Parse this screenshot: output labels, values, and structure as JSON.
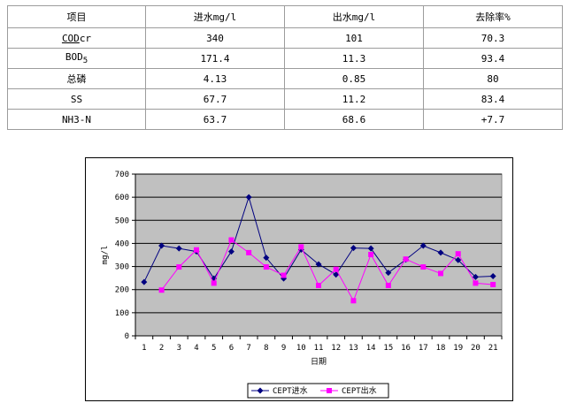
{
  "table": {
    "headers": [
      "项目",
      "进水mg/l",
      "出水mg/l",
      "去除率%"
    ],
    "rows": [
      {
        "item": "CODcr",
        "item_base": "COD",
        "item_sub": "cr",
        "influent": "340",
        "effluent": "101",
        "removal": "70.3"
      },
      {
        "item": "BOD5",
        "item_base": "BOD",
        "item_sub": "5",
        "influent": "171.4",
        "effluent": "11.3",
        "removal": "93.4"
      },
      {
        "item": "总磷",
        "item_base": "总磷",
        "item_sub": "",
        "influent": "4.13",
        "effluent": "0.85",
        "removal": "80"
      },
      {
        "item": "SS",
        "item_base": "SS",
        "item_sub": "",
        "influent": "67.7",
        "effluent": "11.2",
        "removal": "83.4"
      },
      {
        "item": "NH3-N",
        "item_base": "NH3-N",
        "item_sub": "",
        "influent": "63.7",
        "effluent": "68.6",
        "removal": "+7.7"
      }
    ]
  },
  "chart_data": {
    "type": "line",
    "title": "",
    "xlabel": "日期",
    "ylabel": "mg/l",
    "x": [
      1,
      2,
      3,
      4,
      5,
      6,
      7,
      8,
      9,
      10,
      11,
      12,
      13,
      14,
      15,
      16,
      17,
      18,
      19,
      20,
      21
    ],
    "ylim": [
      0,
      700
    ],
    "yticks": [
      0,
      100,
      200,
      300,
      400,
      500,
      600,
      700
    ],
    "grid": true,
    "plot_background": "#c0c0c0",
    "legend_position": "bottom-center",
    "series": [
      {
        "name": "CEPT进水",
        "color": "#000080",
        "marker": "diamond",
        "values": [
          233,
          390,
          378,
          365,
          248,
          365,
          600,
          338,
          248,
          373,
          310,
          265,
          380,
          378,
          273,
          330,
          390,
          360,
          328,
          255,
          258
        ]
      },
      {
        "name": "CEPT出水",
        "color": "#ff00ff",
        "marker": "square",
        "values": [
          null,
          198,
          298,
          372,
          228,
          415,
          360,
          298,
          262,
          385,
          218,
          288,
          152,
          352,
          218,
          332,
          298,
          270,
          355,
          228,
          222
        ]
      }
    ]
  }
}
